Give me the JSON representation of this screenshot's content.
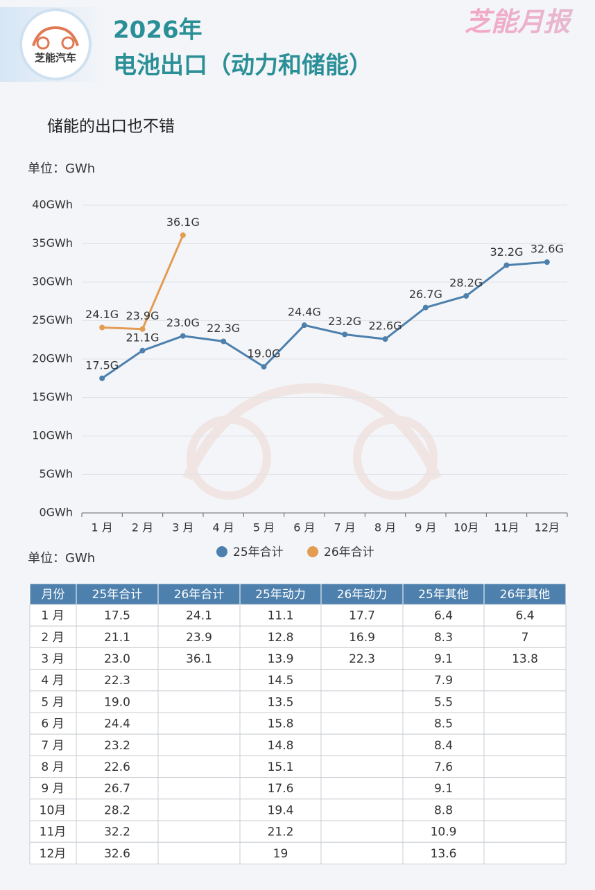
{
  "header": {
    "logo_text": "芝能汽车",
    "title": "2026年",
    "subtitle": "电池出口（动力和储能）",
    "brand": "芝能月报"
  },
  "chart_data": {
    "type": "line",
    "title": "储能的出口也不错",
    "unit": "单位：GWh",
    "categories": [
      "1 月",
      "2 月",
      "3 月",
      "4 月",
      "5 月",
      "6 月",
      "7 月",
      "8 月",
      "9 月",
      "10月",
      "11月",
      "12月"
    ],
    "series": [
      {
        "name": "25年合计",
        "color": "#4d80ad",
        "values": [
          17.5,
          21.1,
          23.0,
          22.3,
          19.0,
          24.4,
          23.2,
          22.6,
          26.7,
          28.2,
          32.2,
          32.6
        ],
        "value_labels": [
          "17.5G",
          "21.1G",
          "23.0G",
          "22.3G",
          "19.0G",
          "24.4G",
          "23.2G",
          "22.6G",
          "26.7G",
          "28.2G",
          "32.2G",
          "32.6G"
        ]
      },
      {
        "name": "26年合计",
        "color": "#e39c52",
        "values": [
          24.1,
          23.9,
          36.1,
          null,
          null,
          null,
          null,
          null,
          null,
          null,
          null,
          null
        ],
        "value_labels": [
          "24.1G",
          "23.9G",
          "36.1G",
          null,
          null,
          null,
          null,
          null,
          null,
          null,
          null,
          null
        ]
      }
    ],
    "ylim": [
      0,
      40
    ],
    "yticks": [
      {
        "value": 0,
        "label": "0GWh"
      },
      {
        "value": 5,
        "label": "5GWh"
      },
      {
        "value": 10,
        "label": "10GWh"
      },
      {
        "value": 15,
        "label": "15GWh"
      },
      {
        "value": 20,
        "label": "20GWh"
      },
      {
        "value": 25,
        "label": "25GWh"
      },
      {
        "value": 30,
        "label": "30GWh"
      },
      {
        "value": 35,
        "label": "35GWh"
      },
      {
        "value": 40,
        "label": "40GWh"
      }
    ],
    "grid": true,
    "legend": "bottom"
  },
  "table": {
    "unit": "单位：GWh",
    "columns": [
      "月份",
      "25年合计",
      "26年合计",
      "25年动力",
      "26年动力",
      "25年其他",
      "26年其他"
    ],
    "rows": [
      [
        "1 月",
        "17.5",
        "24.1",
        "11.1",
        "17.7",
        "6.4",
        "6.4"
      ],
      [
        "2 月",
        "21.1",
        "23.9",
        "12.8",
        "16.9",
        "8.3",
        "7"
      ],
      [
        "3 月",
        "23.0",
        "36.1",
        "13.9",
        "22.3",
        "9.1",
        "13.8"
      ],
      [
        "4 月",
        "22.3",
        null,
        "14.5",
        null,
        "7.9",
        null
      ],
      [
        "5 月",
        "19.0",
        null,
        "13.5",
        null,
        "5.5",
        null
      ],
      [
        "6 月",
        "24.4",
        null,
        "15.8",
        null,
        "8.5",
        null
      ],
      [
        "7 月",
        "23.2",
        null,
        "14.8",
        null,
        "8.4",
        null
      ],
      [
        "8 月",
        "22.6",
        null,
        "15.1",
        null,
        "7.6",
        null
      ],
      [
        "9 月",
        "26.7",
        null,
        "17.6",
        null,
        "9.1",
        null
      ],
      [
        "10月",
        "28.2",
        null,
        "19.4",
        null,
        "8.8",
        null
      ],
      [
        "11月",
        "32.2",
        null,
        "21.2",
        null,
        "10.9",
        null
      ],
      [
        "12月",
        "32.6",
        null,
        "19",
        null,
        "13.6",
        null
      ]
    ]
  }
}
